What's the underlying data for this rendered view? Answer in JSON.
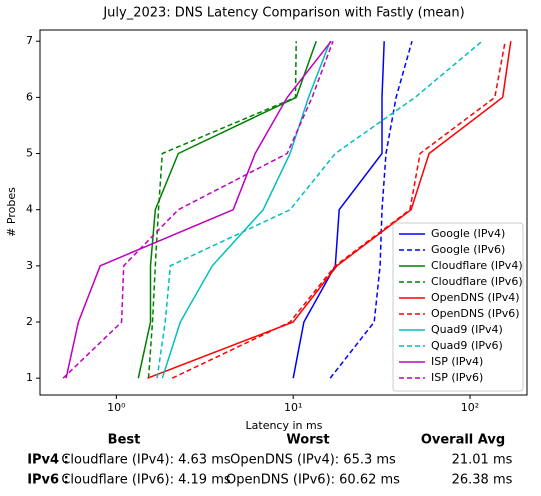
{
  "chart_data": {
    "type": "line",
    "title": "July_2023: DNS Latency Comparison with Fastly (mean)",
    "xlabel": "Latency in ms",
    "ylabel": "# Probes",
    "xscale": "log",
    "xlim": [
      0.37,
      210
    ],
    "ylim": [
      0.7,
      7.2
    ],
    "xticks": [
      {
        "value": 1,
        "label": "10⁰"
      },
      {
        "value": 10,
        "label": "10¹"
      },
      {
        "value": 100,
        "label": "10²"
      }
    ],
    "yticks": [
      1,
      2,
      3,
      4,
      5,
      6,
      7
    ],
    "y": [
      1,
      2,
      3,
      4,
      5,
      6,
      7
    ],
    "legend": "lower right",
    "series": [
      {
        "name": "Google (IPv4)",
        "color": "#0000ff",
        "linestyle": "solid",
        "x": [
          10,
          11.5,
          17.3,
          18.2,
          31.8,
          31.8,
          32.7
        ]
      },
      {
        "name": "Google (IPv6)",
        "color": "#0000ff",
        "linestyle": "dashed",
        "x": [
          16.2,
          28.7,
          31,
          31.8,
          33.5,
          38.2,
          47
        ]
      },
      {
        "name": "Cloudflare (IPv4)",
        "color": "#008000",
        "linestyle": "solid",
        "x": [
          1.33,
          1.56,
          1.56,
          1.66,
          2.24,
          10.4,
          13.5
        ]
      },
      {
        "name": "Cloudflare (IPv6)",
        "color": "#008000",
        "linestyle": "dashed",
        "x": [
          1.52,
          1.6,
          1.66,
          1.73,
          1.82,
          10.3,
          10.4
        ]
      },
      {
        "name": "OpenDNS (IPv4)",
        "color": "#ff0000",
        "linestyle": "solid",
        "x": [
          1.5,
          10,
          17.7,
          46.4,
          58.7,
          153,
          170
        ]
      },
      {
        "name": "OpenDNS (IPv6)",
        "color": "#ff0000",
        "linestyle": "dashed",
        "x": [
          2.07,
          9.6,
          17.3,
          45.7,
          52.2,
          138,
          158
        ]
      },
      {
        "name": "Quad9 (IPv4)",
        "color": "#00bfbf",
        "linestyle": "solid",
        "x": [
          1.82,
          2.3,
          3.49,
          6.77,
          9.6,
          12.2,
          16.2
        ]
      },
      {
        "name": "Quad9 (IPv6)",
        "color": "#00bfbf",
        "linestyle": "dashed",
        "x": [
          1.7,
          1.89,
          2.02,
          9.6,
          17.3,
          48.9,
          117
        ]
      },
      {
        "name": "ISP (IPv4)",
        "color": "#bf00bf",
        "linestyle": "solid",
        "x": [
          0.52,
          0.61,
          0.81,
          4.58,
          6.1,
          9.25,
          16.4
        ]
      },
      {
        "name": "ISP (IPv6)",
        "color": "#bf00bf",
        "linestyle": "dashed",
        "x": [
          0.5,
          1.07,
          1.1,
          2.24,
          9.25,
          12.8,
          16.8
        ]
      }
    ]
  },
  "table": {
    "header": [
      "Best",
      "Worst",
      "Overall Avg"
    ],
    "rows": [
      [
        "IPv4 :",
        "Cloudflare (IPv4): 4.63 ms",
        "OpenDNS (IPv4): 65.3 ms",
        "21.01 ms"
      ],
      [
        "IPv6 :",
        "Cloudflare (IPv6): 4.19 ms",
        "OpenDNS (IPv6): 60.62 ms",
        "26.38 ms"
      ]
    ]
  }
}
